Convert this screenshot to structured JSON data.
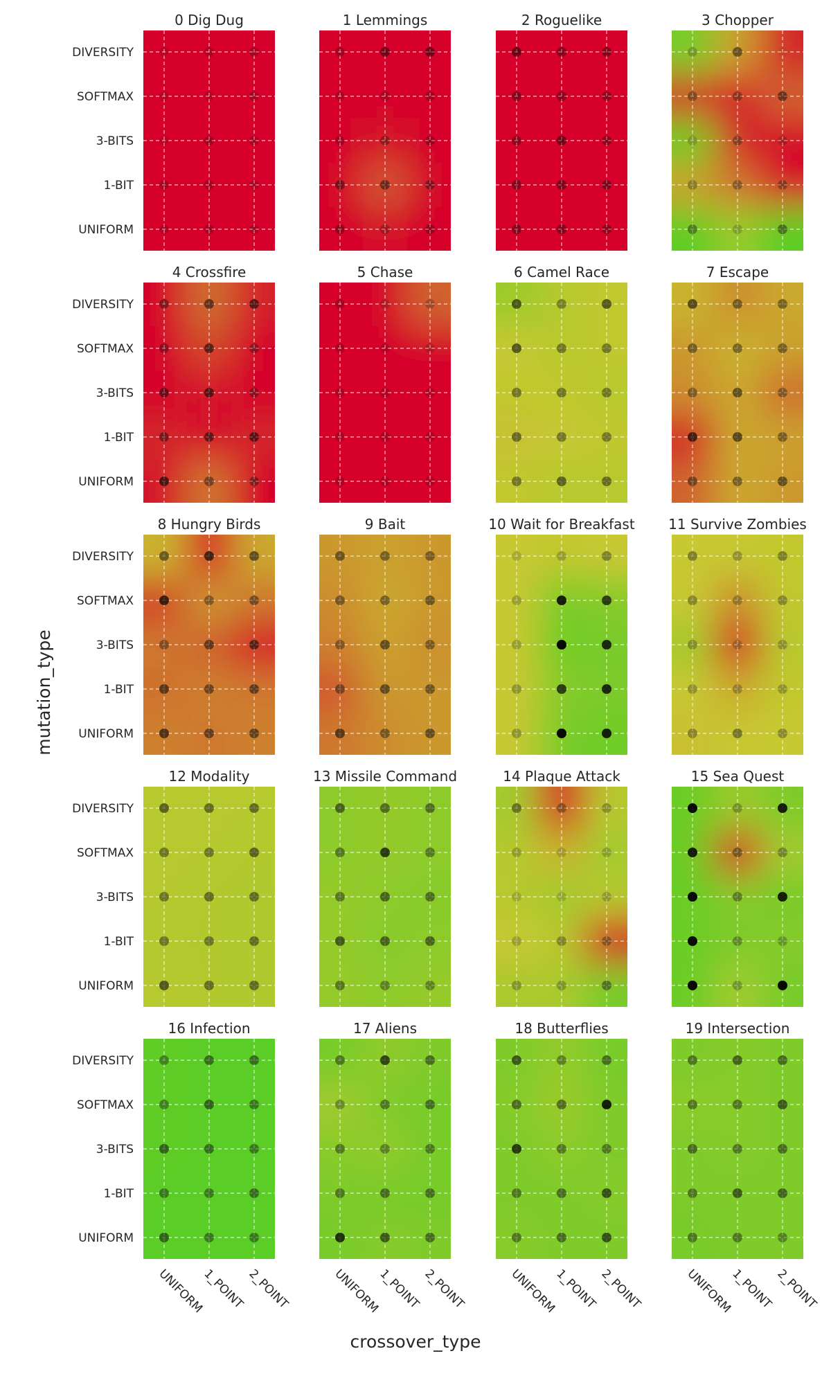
{
  "figure": {
    "xlabel": "crossover_type",
    "ylabel": "mutation_type"
  },
  "chart_data": {
    "type": "heatmap",
    "layout": "small-multiples 5 rows x 4 columns",
    "x_categories": [
      "UNIFORM",
      "1_POINT",
      "2_POINT"
    ],
    "y_categories": [
      "DIVERSITY",
      "SOFTMAX",
      "3-BITS",
      "1-BIT",
      "UNIFORM"
    ],
    "color_scale": {
      "low": "#d6002a",
      "mid": "#c8c830",
      "high": "#10d020"
    },
    "value_range": [
      0,
      1
    ],
    "grid": true,
    "point_color": "#000000",
    "panels": [
      {
        "title": "0 Dig Dug",
        "values": [
          [
            0,
            0,
            0
          ],
          [
            0,
            0,
            0
          ],
          [
            0,
            0,
            0
          ],
          [
            0,
            0,
            0
          ],
          [
            0,
            0,
            0
          ]
        ],
        "points": [
          [
            0.1,
            0.15,
            0.2
          ],
          [
            0.12,
            0.12,
            0.18
          ],
          [
            0.1,
            0.22,
            0.18
          ],
          [
            0.18,
            0.18,
            0.16
          ],
          [
            0.15,
            0.2,
            0.18
          ]
        ]
      },
      {
        "title": "1 Lemmings",
        "values": [
          [
            0,
            0,
            0
          ],
          [
            0,
            0,
            0
          ],
          [
            0,
            0.05,
            0
          ],
          [
            0,
            0.22,
            0
          ],
          [
            0,
            0.04,
            0
          ]
        ],
        "points": [
          [
            0.22,
            0.45,
            0.45
          ],
          [
            0.15,
            0.18,
            0.22
          ],
          [
            0.2,
            0.28,
            0.25
          ],
          [
            0.4,
            0.45,
            0.35
          ],
          [
            0.28,
            0.22,
            0.26
          ]
        ]
      },
      {
        "title": "2 Roguelike",
        "values": [
          [
            0,
            0,
            0
          ],
          [
            0,
            0,
            0
          ],
          [
            0,
            0,
            0
          ],
          [
            0,
            0,
            0
          ],
          [
            0,
            0,
            0
          ]
        ],
        "points": [
          [
            0.48,
            0.35,
            0.35
          ],
          [
            0.35,
            0.32,
            0.3
          ],
          [
            0.3,
            0.45,
            0.3
          ],
          [
            0.35,
            0.4,
            0.38
          ],
          [
            0.35,
            0.35,
            0.3
          ]
        ]
      },
      {
        "title": "3 Chopper",
        "values": [
          [
            0.72,
            0.4,
            0.1
          ],
          [
            0.12,
            0.05,
            0.25
          ],
          [
            0.75,
            0.1,
            0
          ],
          [
            0.4,
            0.3,
            0.05
          ],
          [
            0.78,
            0.62,
            0.8
          ]
        ],
        "points": [
          [
            0.18,
            0.45,
            0.05
          ],
          [
            0.3,
            0.3,
            0.45
          ],
          [
            0.15,
            0.3,
            0.18
          ],
          [
            0.25,
            0.3,
            0.3
          ],
          [
            0.35,
            0.18,
            0.4
          ]
        ]
      },
      {
        "title": "4 Crossfire",
        "values": [
          [
            0,
            0.28,
            0.08
          ],
          [
            0,
            0.18,
            0
          ],
          [
            0,
            0.05,
            0
          ],
          [
            0.1,
            0,
            0.1
          ],
          [
            0.05,
            0.3,
            0
          ]
        ],
        "points": [
          [
            0.35,
            0.5,
            0.55
          ],
          [
            0.3,
            0.55,
            0.3
          ],
          [
            0.45,
            0.55,
            0.3
          ],
          [
            0.4,
            0.5,
            0.55
          ],
          [
            0.6,
            0.4,
            0.35
          ]
        ]
      },
      {
        "title": "5 Chase",
        "values": [
          [
            0,
            0,
            0.25
          ],
          [
            0,
            0,
            0
          ],
          [
            0,
            0,
            0
          ],
          [
            0,
            0,
            0
          ],
          [
            0,
            0,
            0
          ]
        ],
        "points": [
          [
            0.2,
            0.15,
            0.2
          ],
          [
            0.18,
            0.15,
            0.15
          ],
          [
            0.15,
            0.15,
            0.15
          ],
          [
            0.15,
            0.18,
            0.15
          ],
          [
            0.15,
            0.15,
            0.15
          ]
        ]
      },
      {
        "title": "6 Camel Race",
        "values": [
          [
            0.62,
            0.55,
            0.52
          ],
          [
            0.5,
            0.55,
            0.52
          ],
          [
            0.52,
            0.52,
            0.55
          ],
          [
            0.48,
            0.5,
            0.52
          ],
          [
            0.52,
            0.55,
            0.55
          ]
        ],
        "points": [
          [
            0.55,
            0.35,
            0.55
          ],
          [
            0.55,
            0.4,
            0.4
          ],
          [
            0.4,
            0.4,
            0.4
          ],
          [
            0.45,
            0.4,
            0.4
          ],
          [
            0.4,
            0.5,
            0.45
          ]
        ]
      },
      {
        "title": "7 Escape",
        "values": [
          [
            0.45,
            0.35,
            0.42
          ],
          [
            0.38,
            0.45,
            0.4
          ],
          [
            0.35,
            0.42,
            0.28
          ],
          [
            0.1,
            0.42,
            0.4
          ],
          [
            0.25,
            0.42,
            0.38
          ]
        ],
        "points": [
          [
            0.55,
            0.4,
            0.4
          ],
          [
            0.4,
            0.4,
            0.4
          ],
          [
            0.35,
            0.5,
            0.35
          ],
          [
            0.65,
            0.55,
            0.4
          ],
          [
            0.4,
            0.4,
            0.5
          ]
        ]
      },
      {
        "title": "8 Hungry Birds",
        "values": [
          [
            0.45,
            0.05,
            0.42
          ],
          [
            0.15,
            0.38,
            0.3
          ],
          [
            0.3,
            0.25,
            0.05
          ],
          [
            0.28,
            0.32,
            0.3
          ],
          [
            0.32,
            0.3,
            0.32
          ]
        ],
        "points": [
          [
            0.45,
            0.65,
            0.5
          ],
          [
            0.7,
            0.35,
            0.4
          ],
          [
            0.35,
            0.5,
            0.55
          ],
          [
            0.55,
            0.45,
            0.5
          ],
          [
            0.6,
            0.5,
            0.5
          ]
        ]
      },
      {
        "title": "9 Bait",
        "values": [
          [
            0.38,
            0.4,
            0.38
          ],
          [
            0.35,
            0.42,
            0.38
          ],
          [
            0.32,
            0.4,
            0.36
          ],
          [
            0.22,
            0.38,
            0.38
          ],
          [
            0.3,
            0.35,
            0.38
          ]
        ],
        "points": [
          [
            0.45,
            0.4,
            0.4
          ],
          [
            0.4,
            0.4,
            0.45
          ],
          [
            0.35,
            0.5,
            0.4
          ],
          [
            0.4,
            0.5,
            0.45
          ],
          [
            0.55,
            0.4,
            0.5
          ]
        ]
      },
      {
        "title": "10 Wait for Breakfast",
        "values": [
          [
            0.5,
            0.52,
            0.5
          ],
          [
            0.5,
            0.72,
            0.68
          ],
          [
            0.5,
            0.74,
            0.72
          ],
          [
            0.5,
            0.68,
            0.7
          ],
          [
            0.5,
            0.72,
            0.74
          ]
        ],
        "points": [
          [
            0.15,
            0.2,
            0.35
          ],
          [
            0.2,
            0.85,
            0.7
          ],
          [
            0.2,
            0.95,
            0.8
          ],
          [
            0.25,
            0.7,
            0.8
          ],
          [
            0.25,
            0.95,
            0.85
          ]
        ]
      },
      {
        "title": "11 Survive Zombies",
        "values": [
          [
            0.5,
            0.5,
            0.52
          ],
          [
            0.5,
            0.35,
            0.52
          ],
          [
            0.6,
            0.05,
            0.55
          ],
          [
            0.5,
            0.42,
            0.52
          ],
          [
            0.48,
            0.5,
            0.5
          ]
        ],
        "points": [
          [
            0.35,
            0.25,
            0.35
          ],
          [
            0.3,
            0.25,
            0.3
          ],
          [
            0.25,
            0.2,
            0.25
          ],
          [
            0.25,
            0.25,
            0.25
          ],
          [
            0.3,
            0.4,
            0.3
          ]
        ]
      },
      {
        "title": "12 Modality",
        "values": [
          [
            0.55,
            0.55,
            0.55
          ],
          [
            0.55,
            0.55,
            0.56
          ],
          [
            0.55,
            0.56,
            0.57
          ],
          [
            0.56,
            0.56,
            0.57
          ],
          [
            0.55,
            0.56,
            0.57
          ]
        ],
        "points": [
          [
            0.5,
            0.45,
            0.45
          ],
          [
            0.4,
            0.4,
            0.5
          ],
          [
            0.4,
            0.45,
            0.45
          ],
          [
            0.4,
            0.4,
            0.45
          ],
          [
            0.55,
            0.45,
            0.45
          ]
        ]
      },
      {
        "title": "13 Missile Command",
        "values": [
          [
            0.66,
            0.64,
            0.66
          ],
          [
            0.66,
            0.64,
            0.66
          ],
          [
            0.64,
            0.66,
            0.68
          ],
          [
            0.64,
            0.68,
            0.66
          ],
          [
            0.64,
            0.66,
            0.64
          ]
        ],
        "points": [
          [
            0.5,
            0.45,
            0.45
          ],
          [
            0.4,
            0.7,
            0.4
          ],
          [
            0.4,
            0.5,
            0.45
          ],
          [
            0.55,
            0.5,
            0.5
          ],
          [
            0.4,
            0.35,
            0.35
          ]
        ]
      },
      {
        "title": "14 Plaque Attack",
        "values": [
          [
            0.6,
            0.05,
            0.55
          ],
          [
            0.55,
            0.45,
            0.6
          ],
          [
            0.55,
            0.6,
            0.55
          ],
          [
            0.5,
            0.55,
            0.05
          ],
          [
            0.58,
            0.58,
            0.72
          ]
        ],
        "points": [
          [
            0.4,
            0.3,
            0.25
          ],
          [
            0.2,
            0.15,
            0.2
          ],
          [
            0.15,
            0.15,
            0.2
          ],
          [
            0.2,
            0.3,
            0.3
          ],
          [
            0.25,
            0.25,
            0.4
          ]
        ]
      },
      {
        "title": "15 Sea Quest",
        "values": [
          [
            0.75,
            0.62,
            0.7
          ],
          [
            0.75,
            0.08,
            0.6
          ],
          [
            0.75,
            0.68,
            0.72
          ],
          [
            0.75,
            0.7,
            0.68
          ],
          [
            0.75,
            0.6,
            0.72
          ]
        ],
        "points": [
          [
            0.95,
            0.25,
            0.85
          ],
          [
            0.85,
            0.35,
            0.3
          ],
          [
            0.95,
            0.35,
            0.85
          ],
          [
            0.95,
            0.3,
            0.25
          ],
          [
            0.95,
            0.25,
            0.95
          ]
        ]
      },
      {
        "title": "16 Infection",
        "values": [
          [
            0.78,
            0.8,
            0.8
          ],
          [
            0.78,
            0.8,
            0.8
          ],
          [
            0.78,
            0.8,
            0.8
          ],
          [
            0.8,
            0.8,
            0.8
          ],
          [
            0.8,
            0.8,
            0.8
          ]
        ],
        "points": [
          [
            0.35,
            0.45,
            0.45
          ],
          [
            0.35,
            0.5,
            0.4
          ],
          [
            0.5,
            0.45,
            0.4
          ],
          [
            0.4,
            0.4,
            0.45
          ],
          [
            0.5,
            0.4,
            0.4
          ]
        ]
      },
      {
        "title": "17 Aliens",
        "values": [
          [
            0.72,
            0.65,
            0.7
          ],
          [
            0.6,
            0.7,
            0.72
          ],
          [
            0.68,
            0.64,
            0.72
          ],
          [
            0.7,
            0.72,
            0.72
          ],
          [
            0.72,
            0.68,
            0.7
          ]
        ],
        "points": [
          [
            0.4,
            0.65,
            0.45
          ],
          [
            0.3,
            0.4,
            0.45
          ],
          [
            0.4,
            0.35,
            0.4
          ],
          [
            0.4,
            0.45,
            0.45
          ],
          [
            0.75,
            0.55,
            0.45
          ]
        ]
      },
      {
        "title": "18 Butterflies",
        "values": [
          [
            0.7,
            0.64,
            0.72
          ],
          [
            0.68,
            0.62,
            0.7
          ],
          [
            0.7,
            0.66,
            0.7
          ],
          [
            0.7,
            0.7,
            0.68
          ],
          [
            0.68,
            0.7,
            0.7
          ]
        ],
        "points": [
          [
            0.55,
            0.35,
            0.45
          ],
          [
            0.45,
            0.45,
            0.85
          ],
          [
            0.7,
            0.4,
            0.4
          ],
          [
            0.4,
            0.45,
            0.6
          ],
          [
            0.4,
            0.45,
            0.6
          ]
        ]
      },
      {
        "title": "19 Intersection",
        "values": [
          [
            0.7,
            0.68,
            0.7
          ],
          [
            0.66,
            0.68,
            0.7
          ],
          [
            0.7,
            0.68,
            0.7
          ],
          [
            0.7,
            0.7,
            0.7
          ],
          [
            0.72,
            0.7,
            0.7
          ]
        ],
        "points": [
          [
            0.4,
            0.5,
            0.45
          ],
          [
            0.4,
            0.4,
            0.55
          ],
          [
            0.45,
            0.4,
            0.45
          ],
          [
            0.4,
            0.55,
            0.5
          ],
          [
            0.4,
            0.4,
            0.35
          ]
        ]
      }
    ]
  }
}
